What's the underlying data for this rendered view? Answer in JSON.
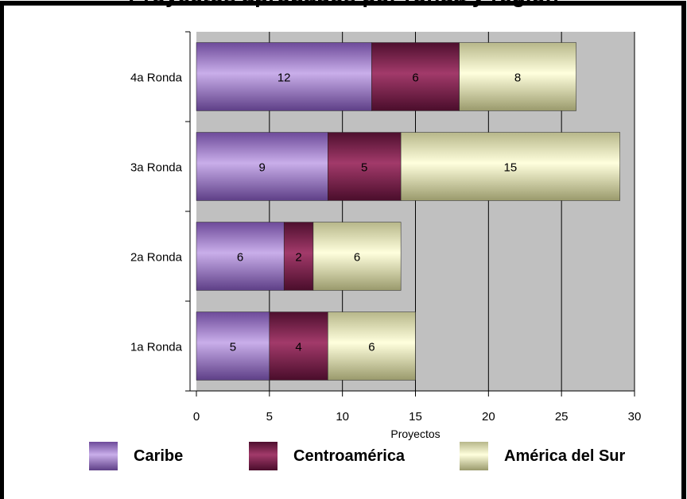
{
  "page": {
    "title": "Proyectos aprobados por ronda y región"
  },
  "chart_data": {
    "type": "bar",
    "orientation": "horizontal",
    "stacked": true,
    "title": "Proyectos aprobados por ronda y región",
    "xlabel": "Proyectos",
    "ylabel": "",
    "categories": [
      "1a Ronda",
      "2a Ronda",
      "3a Ronda",
      "4a Ronda"
    ],
    "series": [
      {
        "name": "Caribe",
        "values": [
          5,
          6,
          9,
          12
        ],
        "color": "#9a72c4"
      },
      {
        "name": "Centroamérica",
        "values": [
          4,
          2,
          5,
          6
        ],
        "color": "#7a1e4c"
      },
      {
        "name": "América del Sur",
        "values": [
          6,
          6,
          15,
          8
        ],
        "color": "#f3f3c0"
      }
    ],
    "xlim": [
      0,
      30
    ],
    "xticks": [
      "0",
      "5",
      "10",
      "15",
      "20",
      "25",
      "30"
    ],
    "grid": true,
    "legend_position": "bottom",
    "plot_background": "#c0c0c0"
  }
}
